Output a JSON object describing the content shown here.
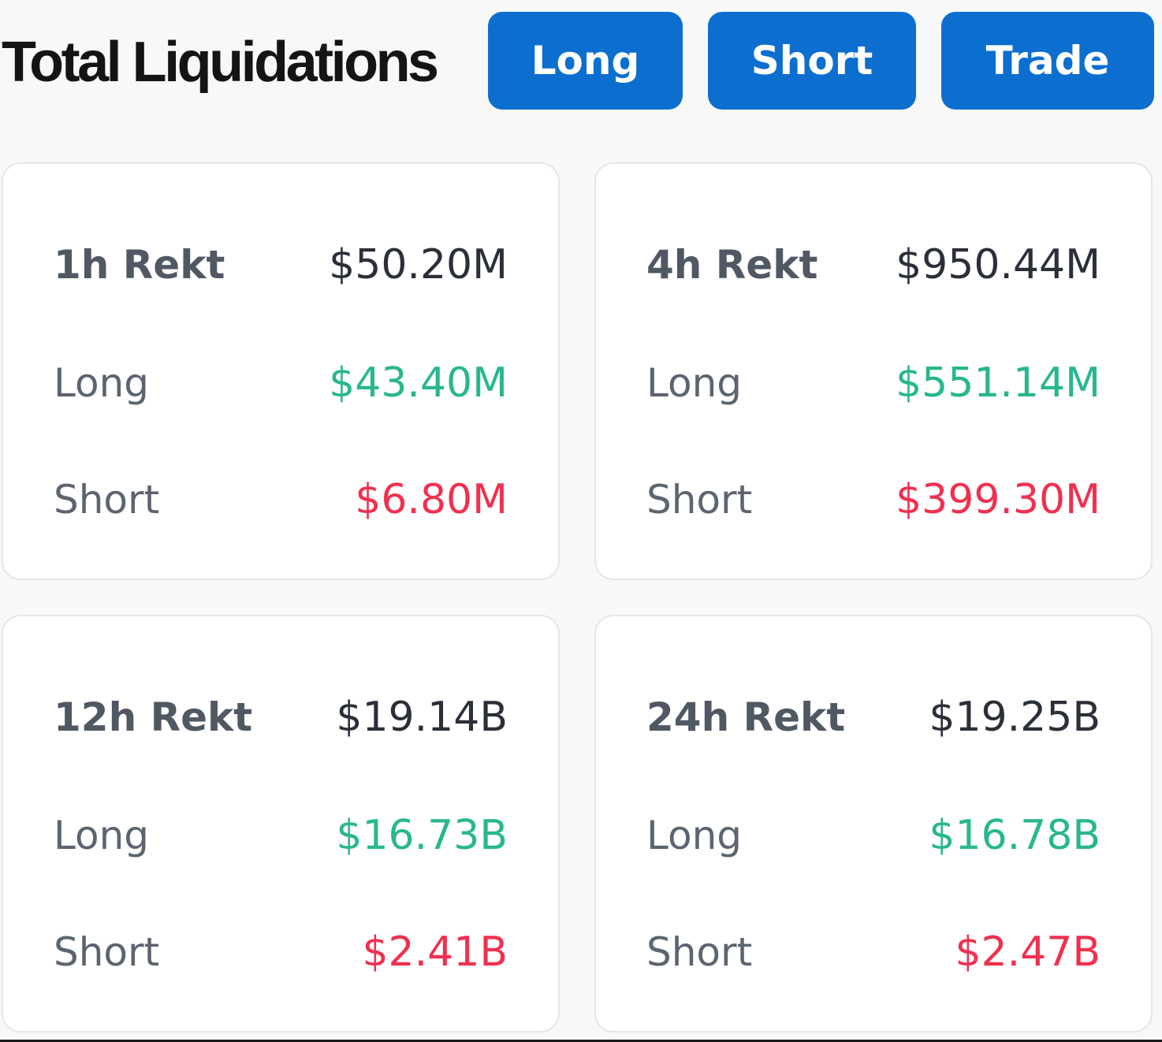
{
  "header": {
    "title": "Total Liquidations",
    "buttons": {
      "long": "Long",
      "short": "Short",
      "trade": "Trade"
    }
  },
  "colors": {
    "button_bg": "#0c6fd0",
    "long_value": "#28b78e",
    "short_value": "#f0304f",
    "total_value": "#2a2f38"
  },
  "cards": [
    {
      "title": "1h Rekt",
      "total": "$50.20M",
      "long_label": "Long",
      "long": "$43.40M",
      "short_label": "Short",
      "short": "$6.80M"
    },
    {
      "title": "4h Rekt",
      "total": "$950.44M",
      "long_label": "Long",
      "long": "$551.14M",
      "short_label": "Short",
      "short": "$399.30M"
    },
    {
      "title": "12h Rekt",
      "total": "$19.14B",
      "long_label": "Long",
      "long": "$16.73B",
      "short_label": "Short",
      "short": "$2.41B"
    },
    {
      "title": "24h Rekt",
      "total": "$19.25B",
      "long_label": "Long",
      "long": "$16.78B",
      "short_label": "Short",
      "short": "$2.47B"
    }
  ]
}
